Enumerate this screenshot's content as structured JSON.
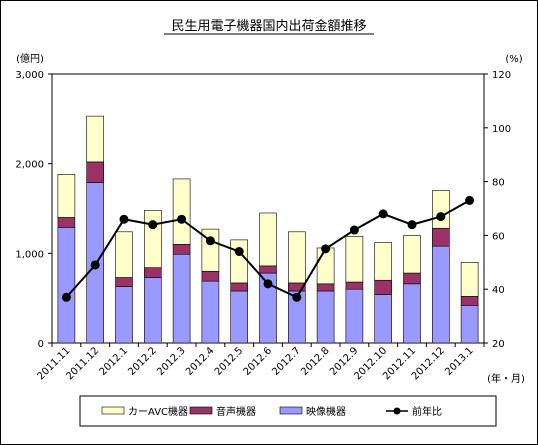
{
  "chart_data": {
    "type": "bar",
    "stacked": true,
    "title": "民生用電子機器国内出荷金額推移",
    "categories": [
      "2011.11",
      "2011.12",
      "2012.1",
      "2012.2",
      "2012.3",
      "2012.4",
      "2012.5",
      "2012.6",
      "2012.7",
      "2012.8",
      "2012.9",
      "2012.10",
      "2012.11",
      "2012.12",
      "2013.1"
    ],
    "left_axis_unit": "(億円)",
    "right_axis_unit": "(%)",
    "x_axis_unit": "(年・月)",
    "left_ticks": [
      "0",
      "1,000",
      "2,000",
      "3,000"
    ],
    "right_ticks": [
      "20",
      "40",
      "60",
      "80",
      "100",
      "120"
    ],
    "ylim_left": [
      0,
      3000
    ],
    "ylim_right": [
      20,
      120
    ],
    "series": [
      {
        "name": "映像機器",
        "color": "#9999ff",
        "values": [
          1290,
          1790,
          630,
          730,
          990,
          690,
          580,
          780,
          580,
          580,
          600,
          540,
          660,
          1080,
          420
        ]
      },
      {
        "name": "音声機器",
        "color": "#993366",
        "values": [
          110,
          230,
          100,
          110,
          110,
          110,
          90,
          80,
          90,
          80,
          80,
          160,
          120,
          200,
          100
        ]
      },
      {
        "name": "カーAVC機器",
        "color": "#ffffcc",
        "values": [
          480,
          510,
          510,
          640,
          730,
          470,
          480,
          590,
          570,
          400,
          510,
          420,
          420,
          420,
          380
        ]
      }
    ],
    "line_series": {
      "name": "前年比",
      "color": "#000000",
      "values": [
        37,
        49,
        66,
        64,
        66,
        58,
        54,
        42,
        37,
        55,
        62,
        68,
        64,
        67,
        73
      ]
    },
    "legend_position": "bottom",
    "legend_order": [
      "カーAVC機器",
      "音声機器",
      "映像機器",
      "前年比"
    ]
  }
}
